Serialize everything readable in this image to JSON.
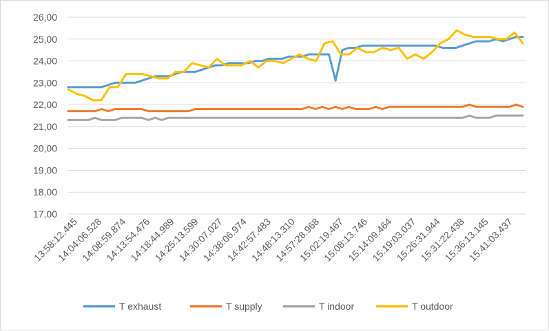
{
  "chart_data": {
    "type": "line",
    "title": "",
    "xlabel": "",
    "ylabel": "",
    "ylim": [
      17,
      26
    ],
    "y_tick_labels": [
      "17,00",
      "18,00",
      "19,00",
      "20,00",
      "21,00",
      "22,00",
      "23,00",
      "24,00",
      "25,00",
      "26,00"
    ],
    "x_tick_labels": [
      "13:58:12.445",
      "14:04:06.528",
      "14:08:59.874",
      "14:13:54.476",
      "14:18:44.989",
      "14:25:13.599",
      "14:30:07.027",
      "14:38:06.974",
      "14:42:57.483",
      "14:48:13.310",
      "14:57:28.968",
      "15:02:19.467",
      "15:08:13.746",
      "15:14:09.464",
      "15:19:03.037",
      "15:26:31.944",
      "15:31:22.438",
      "15:36:13.145",
      "15:41:03.437"
    ],
    "grid": true,
    "legend_position": "bottom",
    "series": [
      {
        "name": "T exhaust",
        "color": "#5b9bd5",
        "values": [
          22.8,
          22.8,
          22.8,
          22.8,
          22.8,
          22.8,
          22.9,
          23.0,
          23.0,
          23.0,
          23.0,
          23.1,
          23.2,
          23.3,
          23.3,
          23.3,
          23.4,
          23.5,
          23.5,
          23.5,
          23.6,
          23.7,
          23.8,
          23.8,
          23.9,
          23.9,
          23.9,
          23.9,
          24.0,
          24.0,
          24.1,
          24.1,
          24.1,
          24.2,
          24.2,
          24.2,
          24.3,
          24.3,
          24.3,
          24.3,
          23.1,
          24.5,
          24.6,
          24.6,
          24.7,
          24.7,
          24.7,
          24.7,
          24.7,
          24.7,
          24.7,
          24.7,
          24.7,
          24.7,
          24.7,
          24.7,
          24.6,
          24.6,
          24.6,
          24.7,
          24.8,
          24.9,
          24.9,
          24.9,
          25.0,
          24.9,
          25.0,
          25.1,
          25.1
        ]
      },
      {
        "name": "T supply",
        "color": "#ed7d31",
        "values": [
          21.7,
          21.7,
          21.7,
          21.7,
          21.7,
          21.8,
          21.7,
          21.8,
          21.8,
          21.8,
          21.8,
          21.8,
          21.7,
          21.7,
          21.7,
          21.7,
          21.7,
          21.7,
          21.7,
          21.8,
          21.8,
          21.8,
          21.8,
          21.8,
          21.8,
          21.8,
          21.8,
          21.8,
          21.8,
          21.8,
          21.8,
          21.8,
          21.8,
          21.8,
          21.8,
          21.8,
          21.9,
          21.8,
          21.9,
          21.8,
          21.9,
          21.8,
          21.9,
          21.8,
          21.8,
          21.8,
          21.9,
          21.8,
          21.9,
          21.9,
          21.9,
          21.9,
          21.9,
          21.9,
          21.9,
          21.9,
          21.9,
          21.9,
          21.9,
          21.9,
          22.0,
          21.9,
          21.9,
          21.9,
          21.9,
          21.9,
          21.9,
          22.0,
          21.9
        ]
      },
      {
        "name": "T indoor",
        "color": "#a5a5a5",
        "values": [
          21.3,
          21.3,
          21.3,
          21.3,
          21.4,
          21.3,
          21.3,
          21.3,
          21.4,
          21.4,
          21.4,
          21.4,
          21.3,
          21.4,
          21.3,
          21.4,
          21.4,
          21.4,
          21.4,
          21.4,
          21.4,
          21.4,
          21.4,
          21.4,
          21.4,
          21.4,
          21.4,
          21.4,
          21.4,
          21.4,
          21.4,
          21.4,
          21.4,
          21.4,
          21.4,
          21.4,
          21.4,
          21.4,
          21.4,
          21.4,
          21.4,
          21.4,
          21.4,
          21.4,
          21.4,
          21.4,
          21.4,
          21.4,
          21.4,
          21.4,
          21.4,
          21.4,
          21.4,
          21.4,
          21.4,
          21.4,
          21.4,
          21.4,
          21.4,
          21.4,
          21.5,
          21.4,
          21.4,
          21.4,
          21.5,
          21.5,
          21.5,
          21.5,
          21.5
        ]
      },
      {
        "name": "T outdoor",
        "color": "#ffc000",
        "values": [
          22.7,
          22.5,
          22.4,
          22.2,
          22.2,
          22.8,
          22.8,
          23.4,
          23.4,
          23.4,
          23.3,
          23.2,
          23.2,
          23.5,
          23.5,
          23.9,
          23.8,
          23.7,
          24.1,
          23.8,
          23.8,
          23.8,
          24.0,
          23.7,
          24.0,
          24.0,
          23.9,
          24.1,
          24.3,
          24.1,
          24.0,
          24.8,
          24.9,
          24.3,
          24.3,
          24.6,
          24.4,
          24.4,
          24.6,
          24.5,
          24.6,
          24.1,
          24.3,
          24.1,
          24.4,
          24.8,
          25.0,
          25.4,
          25.2,
          25.1,
          25.1,
          25.1,
          25.0,
          25.0,
          25.3,
          24.8
        ]
      }
    ]
  }
}
